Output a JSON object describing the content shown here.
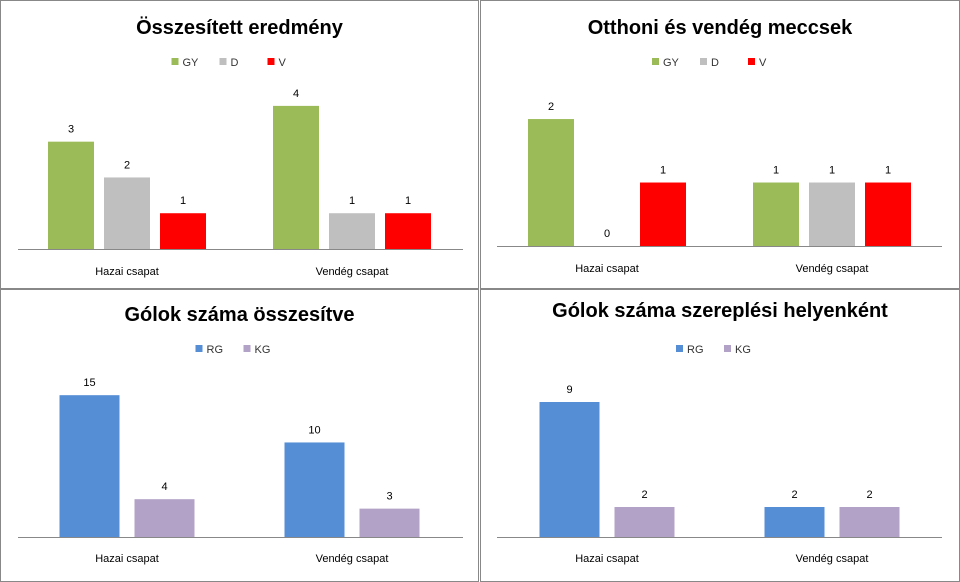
{
  "chart_data": [
    {
      "type": "bar",
      "title": "Összesített eredmény",
      "categories": [
        "Hazai csapat",
        "Vendég csapat"
      ],
      "series": [
        {
          "name": "GY",
          "color": "#9BBB59",
          "values": [
            3,
            4
          ]
        },
        {
          "name": "D",
          "color": "#BFBFBF",
          "values": [
            2,
            1
          ]
        },
        {
          "name": "V",
          "color": "#FF0000",
          "values": [
            1,
            1
          ]
        }
      ],
      "ylim": [
        0,
        4.5
      ],
      "legend": "top-center",
      "grid": false
    },
    {
      "type": "bar",
      "title": "Otthoni és vendég meccsek",
      "categories": [
        "Hazai csapat",
        "Vendég csapat"
      ],
      "series": [
        {
          "name": "GY",
          "color": "#9BBB59",
          "values": [
            2,
            1
          ]
        },
        {
          "name": "D",
          "color": "#BFBFBF",
          "values": [
            0,
            1
          ]
        },
        {
          "name": "V",
          "color": "#FF0000",
          "values": [
            1,
            1
          ]
        }
      ],
      "ylim": [
        0,
        2.3
      ],
      "legend": "top-center",
      "grid": false
    },
    {
      "type": "bar",
      "title": "Gólok száma összesítve",
      "categories": [
        "Hazai csapat",
        "Vendég csapat"
      ],
      "series": [
        {
          "name": "RG",
          "color": "#558ED5",
          "values": [
            15,
            10
          ]
        },
        {
          "name": "KG",
          "color": "#B3A2C7",
          "values": [
            4,
            3
          ]
        }
      ],
      "ylim": [
        0,
        16.5
      ],
      "legend": "top-center",
      "grid": false
    },
    {
      "type": "bar",
      "title": "Gólok száma szereplési helyenként",
      "categories": [
        "Hazai csapat",
        "Vendég csapat"
      ],
      "series": [
        {
          "name": "RG",
          "color": "#558ED5",
          "values": [
            9,
            2
          ]
        },
        {
          "name": "KG",
          "color": "#B3A2C7",
          "values": [
            2,
            2
          ]
        }
      ],
      "ylim": [
        0,
        9.8
      ],
      "legend": "top-center",
      "grid": false
    }
  ]
}
